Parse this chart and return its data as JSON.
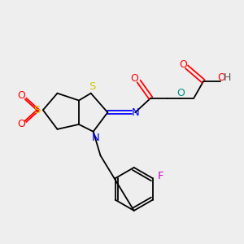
{
  "bg_color": "#eeeeee",
  "lw": 1.3,
  "atom_colors": {
    "S": "#cccc00",
    "O": "#ff0000",
    "N": "#0000ff",
    "F": "#cc00cc",
    "C": "#000000",
    "H": "#555555"
  }
}
